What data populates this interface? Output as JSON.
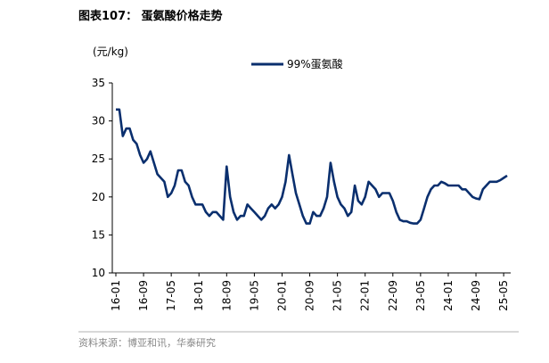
{
  "chart_data": {
    "type": "line",
    "title": "图表107：  蛋氨酸价格走势",
    "y_label": "(元/kg)",
    "source": "资料来源：博亚和讯，华泰研究",
    "categories": [
      "16-01",
      null,
      null,
      null,
      null,
      null,
      null,
      null,
      "16-09",
      null,
      null,
      null,
      null,
      null,
      null,
      null,
      "17-05",
      null,
      null,
      null,
      null,
      null,
      null,
      null,
      "18-01",
      null,
      null,
      null,
      null,
      null,
      null,
      null,
      "18-09",
      null,
      null,
      null,
      null,
      null,
      null,
      null,
      "19-05",
      null,
      null,
      null,
      null,
      null,
      null,
      null,
      "20-01",
      null,
      null,
      null,
      null,
      null,
      null,
      null,
      "20-09",
      null,
      null,
      null,
      null,
      null,
      null,
      null,
      "21-05",
      null,
      null,
      null,
      null,
      null,
      null,
      null,
      "22-01",
      null,
      null,
      null,
      null,
      null,
      null,
      null,
      "22-09",
      null,
      null,
      null,
      null,
      null,
      null,
      null,
      "23-05",
      null,
      null,
      null,
      null,
      null,
      null,
      null,
      "24-01",
      null,
      null,
      null,
      null,
      null,
      null,
      null,
      "24-09",
      null,
      null,
      null,
      null,
      null,
      null,
      null,
      "25-05",
      null
    ],
    "series": [
      {
        "name": "99%蛋氨酸",
        "color": "#0a2f6e",
        "values": [
          31.5,
          31.5,
          28,
          29,
          29,
          27.5,
          27,
          25.5,
          24.5,
          25,
          26,
          24.5,
          23,
          22.5,
          22,
          20,
          20.5,
          21.5,
          23.5,
          23.5,
          22,
          21.5,
          20,
          19,
          19,
          19,
          18,
          17.5,
          18,
          18,
          17.5,
          17,
          24,
          20,
          18,
          17,
          17.5,
          17.5,
          19,
          18.5,
          18,
          17.5,
          17,
          17.5,
          18.5,
          19,
          18.5,
          19,
          20,
          22,
          25.5,
          23,
          20.5,
          19,
          17.5,
          16.5,
          16.5,
          18,
          17.5,
          17.5,
          18.5,
          20,
          24.5,
          22,
          20,
          19,
          18.5,
          17.5,
          18,
          21.5,
          19.5,
          19,
          20,
          22,
          21.5,
          21,
          20,
          20.5,
          20.5,
          20.5,
          19.5,
          18,
          17,
          16.8,
          16.8,
          16.6,
          16.5,
          16.5,
          17,
          18.5,
          20,
          21,
          21.5,
          21.5,
          22,
          21.8,
          21.5,
          21.5,
          21.5,
          21.5,
          21,
          21,
          20.5,
          20,
          19.8,
          19.7,
          21,
          21.5,
          22,
          22,
          22,
          22.2,
          22.5,
          22.8
        ]
      }
    ],
    "ylim": [
      10,
      35
    ],
    "yticks": [
      10,
      15,
      20,
      25,
      30,
      35
    ],
    "legend": "top"
  }
}
